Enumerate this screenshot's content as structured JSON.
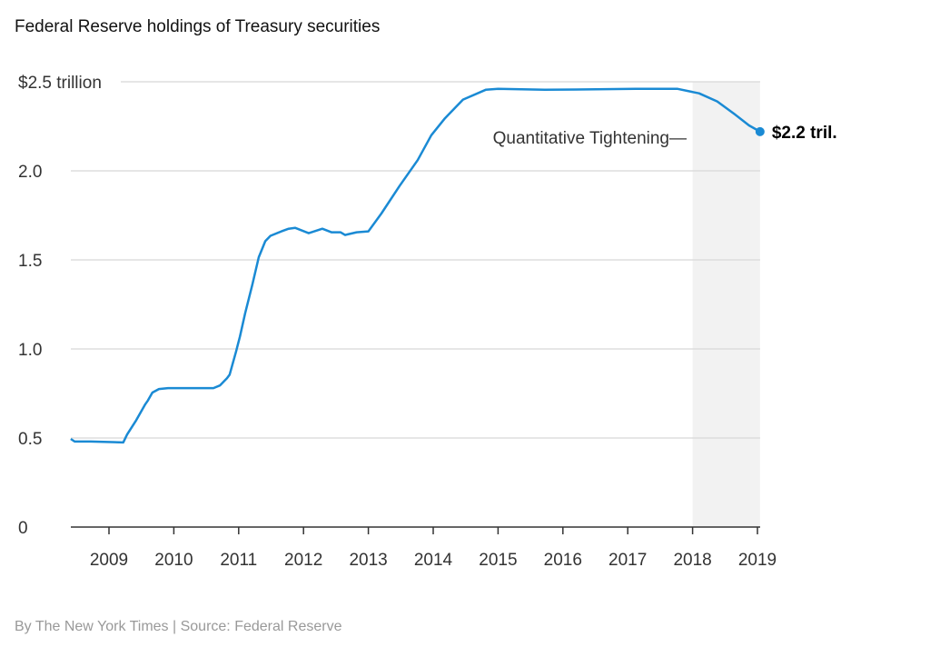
{
  "chart_data": {
    "type": "line",
    "title": "Federal Reserve holdings of Treasury securities",
    "credit": "By The New York Times | Source: Federal Reserve",
    "xlabel": "",
    "ylabel": "",
    "xlim": [
      2008.41,
      2019.04
    ],
    "ylim": [
      0,
      2.5
    ],
    "grid": true,
    "y_ticks": [
      {
        "value": 0,
        "label": "0"
      },
      {
        "value": 0.5,
        "label": "0.5"
      },
      {
        "value": 1.0,
        "label": "1.0"
      },
      {
        "value": 1.5,
        "label": "1.5"
      },
      {
        "value": 2.0,
        "label": "2.0"
      },
      {
        "value": 2.5,
        "label": "$2.5 trillion"
      }
    ],
    "x_ticks": [
      {
        "value": 2009,
        "label": "2009"
      },
      {
        "value": 2010,
        "label": "2010"
      },
      {
        "value": 2011,
        "label": "2011"
      },
      {
        "value": 2012,
        "label": "2012"
      },
      {
        "value": 2013,
        "label": "2013"
      },
      {
        "value": 2014,
        "label": "2014"
      },
      {
        "value": 2015,
        "label": "2015"
      },
      {
        "value": 2016,
        "label": "2016"
      },
      {
        "value": 2017,
        "label": "2017"
      },
      {
        "value": 2018,
        "label": "2018"
      },
      {
        "value": 2019,
        "label": "2019"
      }
    ],
    "shaded_region": {
      "from": 2018.0,
      "to": 2019.04,
      "label": "Quantitative Tightening—",
      "color": "#f2f2f2"
    },
    "end_label": "$2.2 tril.",
    "series": [
      {
        "name": "Treasury holdings",
        "color": "#1a8ad4",
        "x": [
          2008.41,
          2008.47,
          2008.72,
          2009.22,
          2009.28,
          2009.42,
          2009.56,
          2009.6,
          2009.67,
          2009.77,
          2009.91,
          2010.61,
          2010.71,
          2010.82,
          2010.86,
          2010.96,
          2011.02,
          2011.1,
          2011.21,
          2011.31,
          2011.41,
          2011.49,
          2011.66,
          2011.77,
          2011.87,
          2012.08,
          2012.29,
          2012.43,
          2012.57,
          2012.64,
          2012.82,
          2013.0,
          2013.2,
          2013.48,
          2013.76,
          2013.97,
          2014.18,
          2014.46,
          2014.81,
          2015.0,
          2015.72,
          2017.12,
          2017.77,
          2018.1,
          2018.38,
          2018.66,
          2018.87,
          2019.04
        ],
        "values": [
          0.495,
          0.48,
          0.48,
          0.475,
          0.52,
          0.6,
          0.69,
          0.71,
          0.755,
          0.775,
          0.78,
          0.78,
          0.795,
          0.835,
          0.855,
          0.985,
          1.07,
          1.2,
          1.36,
          1.515,
          1.605,
          1.635,
          1.66,
          1.675,
          1.68,
          1.65,
          1.675,
          1.655,
          1.655,
          1.64,
          1.655,
          1.66,
          1.76,
          1.915,
          2.06,
          2.2,
          2.295,
          2.4,
          2.455,
          2.46,
          2.455,
          2.46,
          2.46,
          2.435,
          2.39,
          2.315,
          2.255,
          2.22
        ]
      }
    ]
  }
}
